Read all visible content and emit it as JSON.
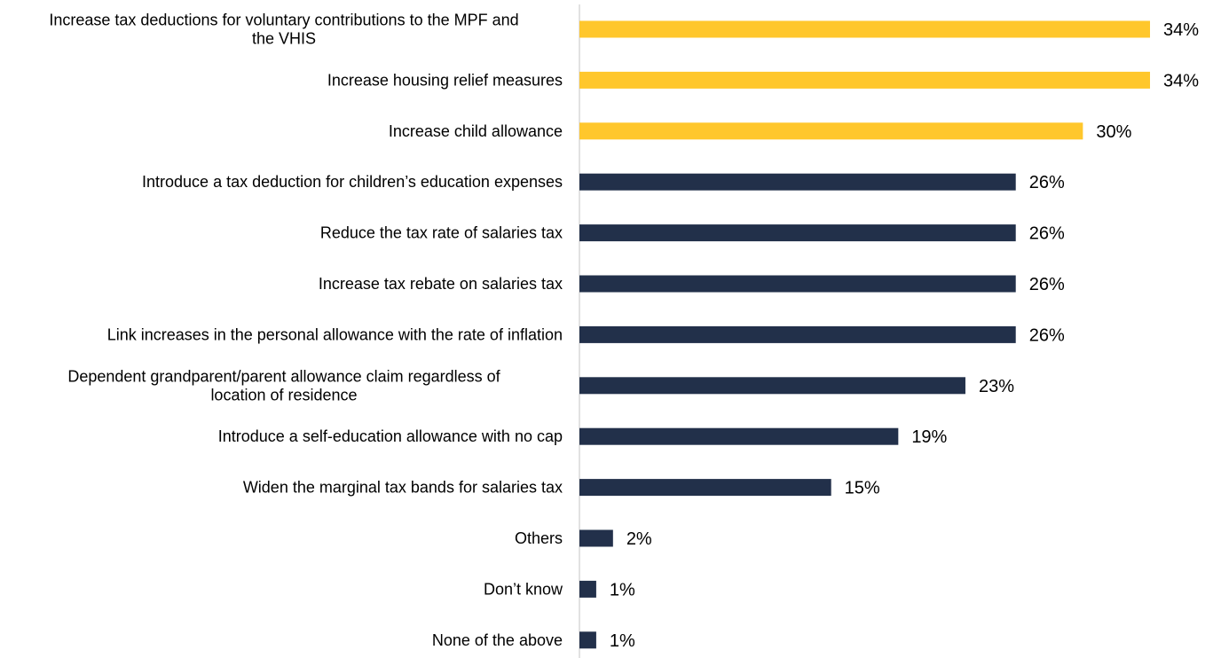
{
  "chart_data": {
    "type": "bar",
    "orientation": "horizontal",
    "value_suffix": "%",
    "xlim": [
      0,
      34
    ],
    "grid": false,
    "legend": "none",
    "colors": {
      "highlight": "#FFC72C",
      "default": "#22304A",
      "axis": "#D9D9D9"
    },
    "categories": [
      [
        "Increase tax deductions for voluntary contributions to the MPF and",
        "the VHIS"
      ],
      [
        "Increase housing relief measures"
      ],
      [
        "Increase child allowance"
      ],
      [
        "Introduce a tax deduction for children’s education expenses"
      ],
      [
        "Reduce the tax rate of salaries tax"
      ],
      [
        "Increase tax rebate on salaries tax"
      ],
      [
        "Link increases in the personal allowance with the rate of inflation"
      ],
      [
        "Dependent grandparent/parent allowance claim regardless of",
        "location of residence"
      ],
      [
        "Introduce a self-education allowance with no cap"
      ],
      [
        "Widen the marginal tax bands for salaries tax"
      ],
      [
        "Others"
      ],
      [
        "Don’t know"
      ],
      [
        "None of the above"
      ]
    ],
    "values": [
      34,
      34,
      30,
      26,
      26,
      26,
      26,
      23,
      19,
      15,
      2,
      1,
      1
    ],
    "highlighted": [
      true,
      true,
      true,
      false,
      false,
      false,
      false,
      false,
      false,
      false,
      false,
      false,
      false
    ]
  }
}
